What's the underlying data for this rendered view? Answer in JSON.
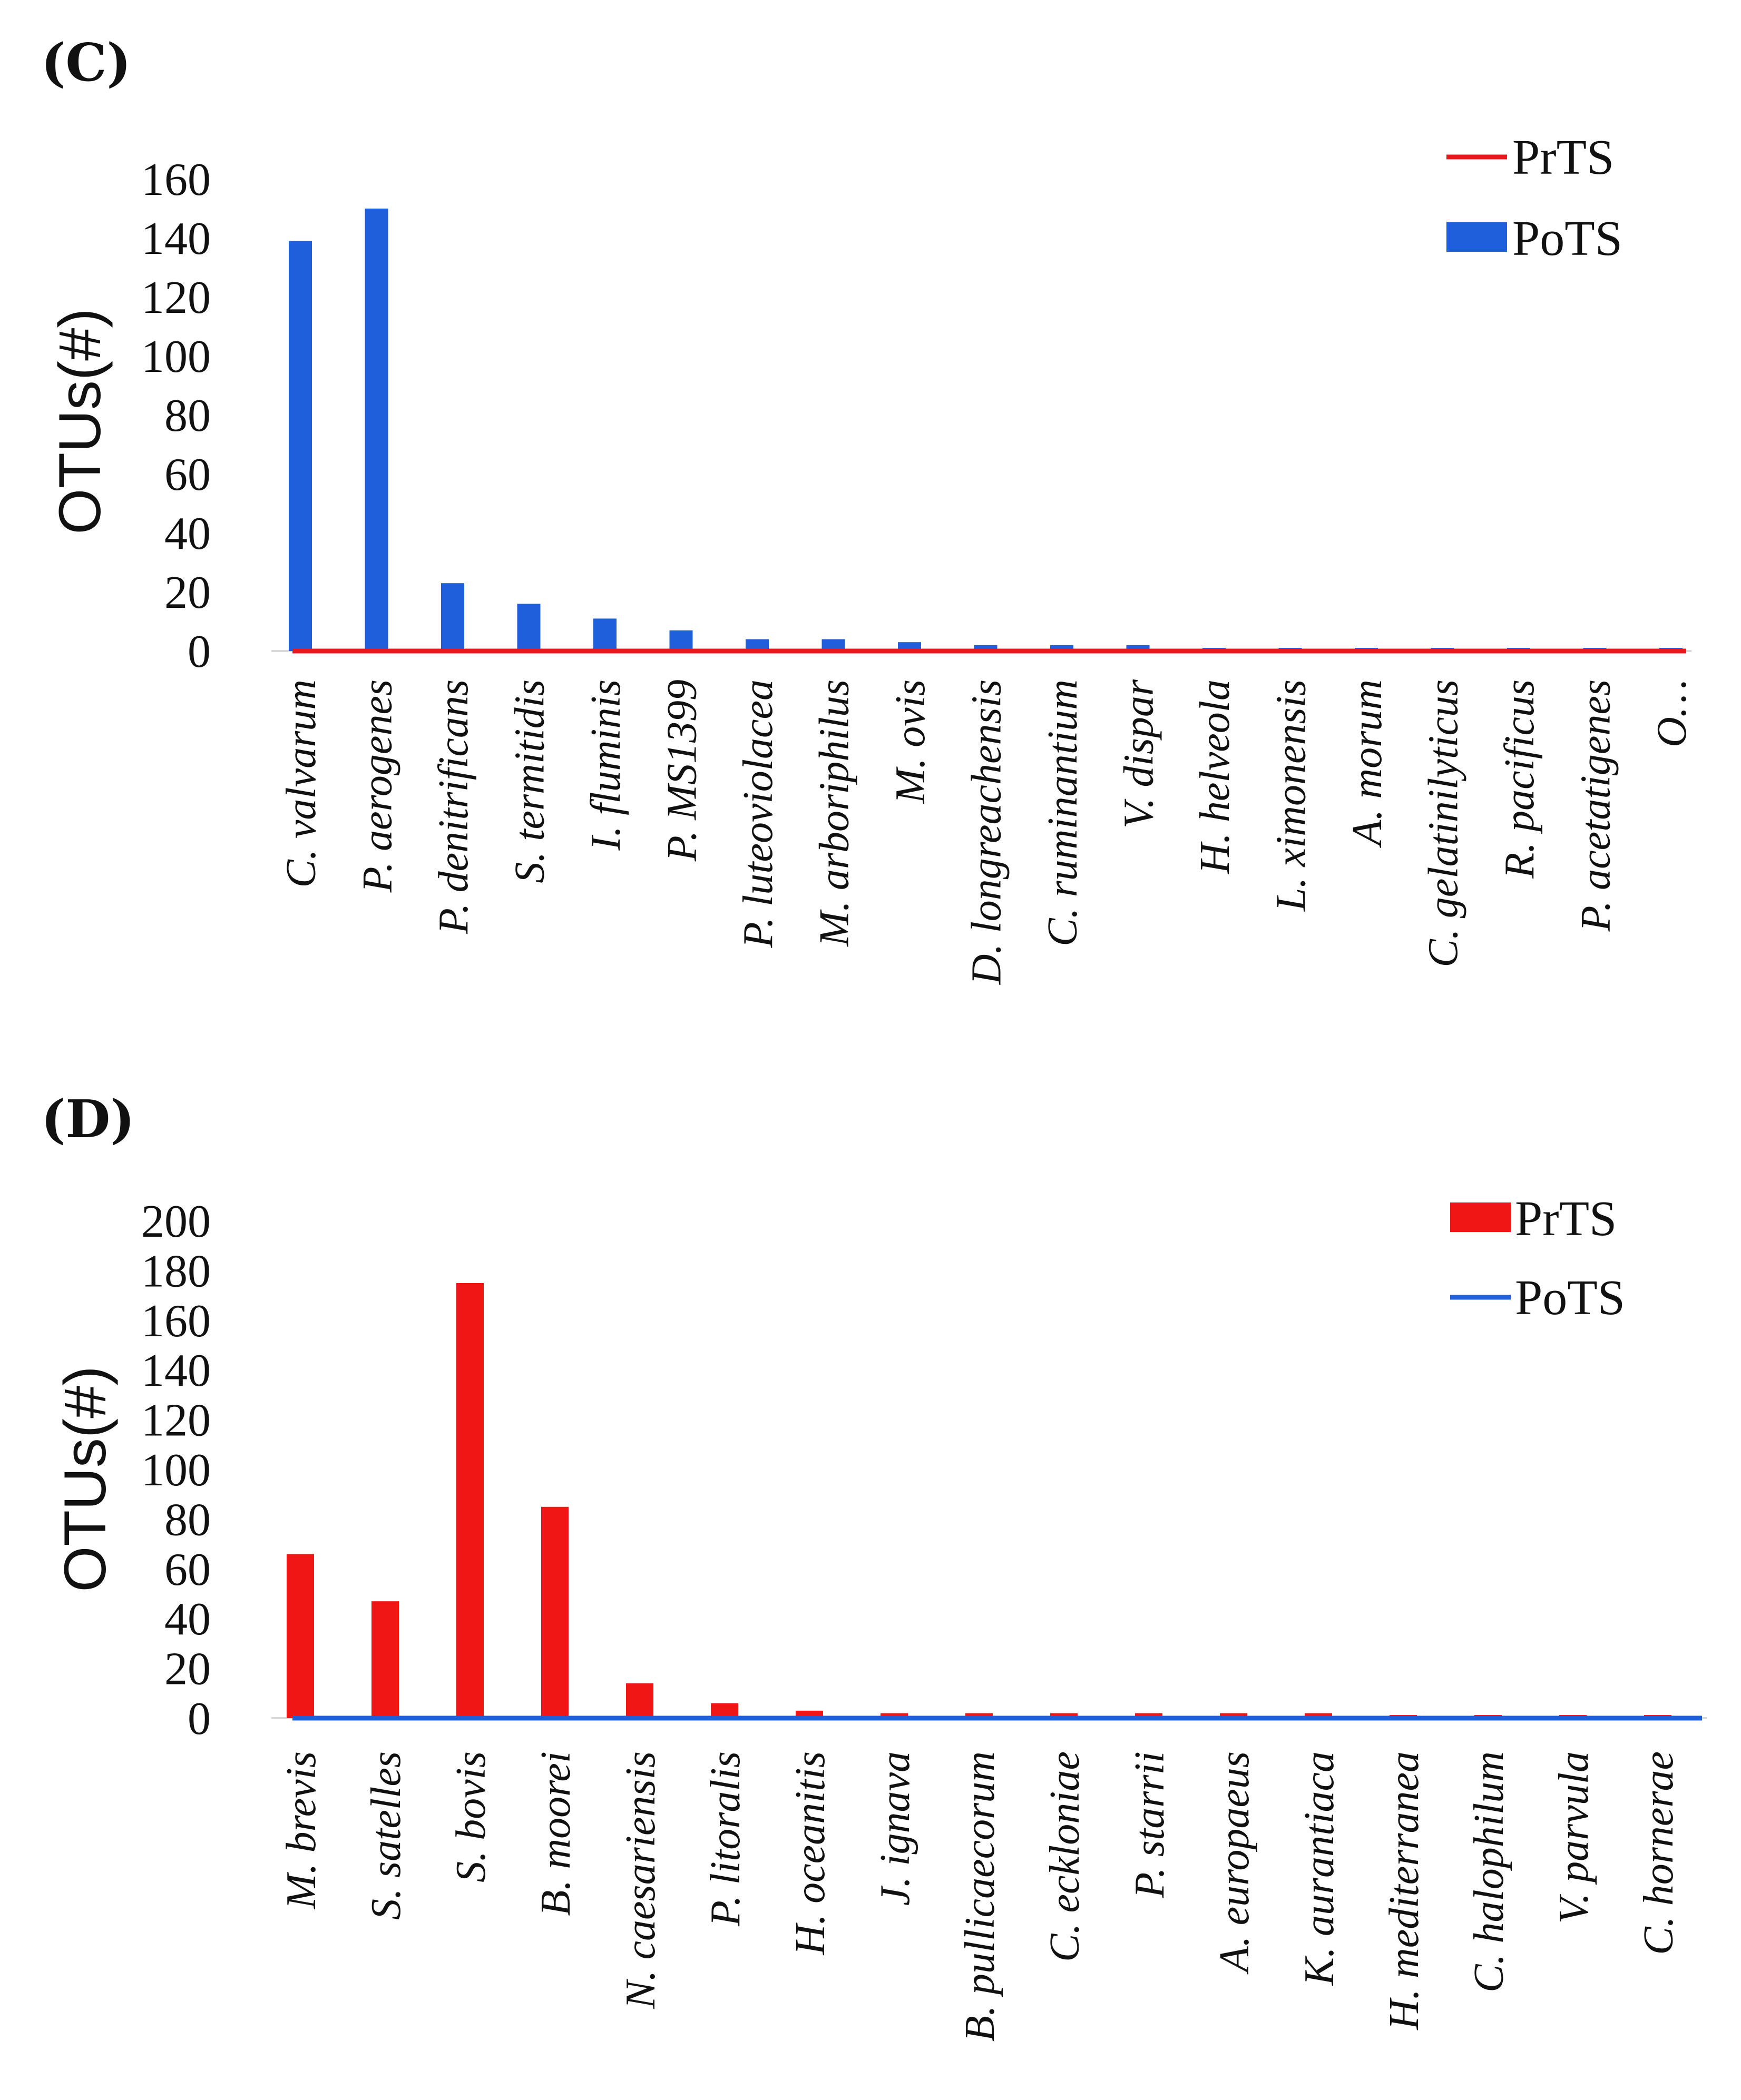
{
  "chart_data": [
    {
      "panel": "(C)",
      "type": "bar",
      "ylabel": "OTUs(#)",
      "ylim": [
        0,
        160
      ],
      "yticks": [
        0,
        20,
        40,
        60,
        80,
        100,
        120,
        140,
        160
      ],
      "grid": false,
      "legend_position": "top-right",
      "categories": [
        "C. valvarum",
        "P. aerogenes",
        "P. denitrificans",
        "S. termitidis",
        "I. fluminis",
        "P. MS1399",
        "P. luteoviolacea",
        "M. arboriphilus",
        "M. ovis",
        "D. longreachensis",
        "C. ruminantium",
        "V. dispar",
        "H. helveola",
        "L. ximonensis",
        "A. morum",
        "C. gelatinilyticus",
        "R. pacificus",
        "P. acetatigenes",
        "O…"
      ],
      "series": [
        {
          "name": "PrTS",
          "style": "line",
          "color": "#e8191c",
          "values": [
            0,
            0,
            0,
            0,
            0,
            0,
            0,
            0,
            0,
            0,
            0,
            0,
            0,
            0,
            0,
            0,
            0,
            0,
            0
          ]
        },
        {
          "name": "PoTS",
          "style": "bar",
          "color": "#1f5fdc",
          "values": [
            139,
            150,
            23,
            16,
            11,
            7,
            4,
            4,
            3,
            2,
            2,
            2,
            1,
            1,
            1,
            1,
            1,
            1,
            1
          ]
        }
      ]
    },
    {
      "panel": "(D)",
      "type": "bar",
      "ylabel": "OTUs(#)",
      "ylim": [
        0,
        200
      ],
      "yticks": [
        0,
        20,
        40,
        60,
        80,
        100,
        120,
        140,
        160,
        180,
        200
      ],
      "grid": false,
      "legend_position": "top-right",
      "categories": [
        "M. brevis",
        "S. satelles",
        "S. bovis",
        "B. moorei",
        "N. caesariensis",
        "P. litoralis",
        "H. oceanitis",
        "J. ignava",
        "B. pullicaecorum",
        "C. eckloniae",
        "P. starrii",
        "A. europaeus",
        "K. aurantiaca",
        "H. mediterranea",
        "C. halophilum",
        "V. parvula",
        "C. hornerae"
      ],
      "series": [
        {
          "name": "PrTS",
          "style": "bar",
          "color": "#f01616",
          "values": [
            66,
            47,
            175,
            85,
            14,
            6,
            3,
            2,
            2,
            2,
            2,
            2,
            2,
            1,
            1,
            1,
            1
          ]
        },
        {
          "name": "PoTS",
          "style": "line",
          "color": "#1f5fdc",
          "values": [
            0,
            0,
            0,
            0,
            0,
            0,
            0,
            0,
            0,
            0,
            0,
            0,
            0,
            0,
            0,
            0,
            0
          ]
        }
      ]
    }
  ]
}
